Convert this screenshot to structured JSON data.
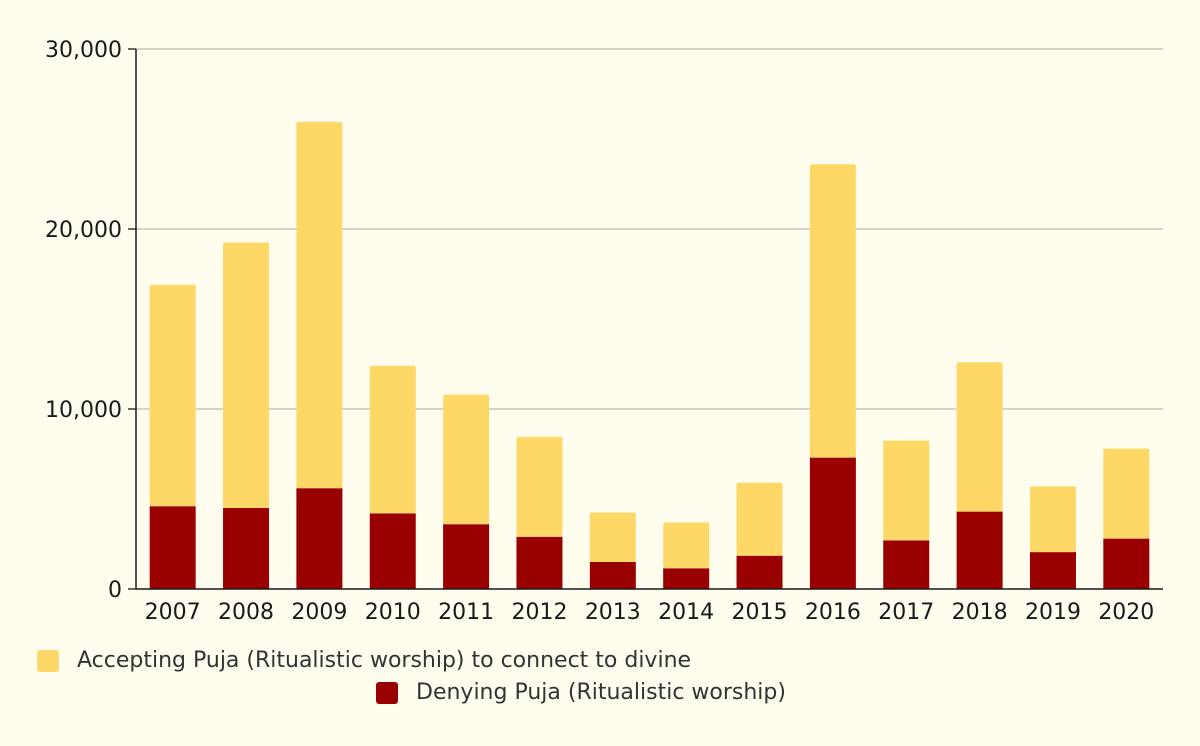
{
  "chart_data": {
    "type": "bar",
    "stacked": true,
    "categories": [
      "2007",
      "2008",
      "2009",
      "2010",
      "2011",
      "2012",
      "2013",
      "2014",
      "2015",
      "2016",
      "2017",
      "2018",
      "2019",
      "2020"
    ],
    "series": [
      {
        "name": "Denying Puja (Ritualistic worship)",
        "color": "#990000",
        "values": [
          4600,
          4500,
          5600,
          4200,
          3600,
          2900,
          1500,
          1150,
          1850,
          7300,
          2700,
          4300,
          2050,
          2800
        ]
      },
      {
        "name": "Accepting Puja (Ritualistic worship) to connect to divine",
        "color": "#fdd867",
        "values": [
          12300,
          14750,
          20350,
          8200,
          7200,
          5550,
          2750,
          2550,
          4050,
          16300,
          5550,
          8300,
          3650,
          5000
        ]
      }
    ],
    "ylim": [
      0,
      30000
    ],
    "yticks": [
      0,
      10000,
      20000,
      30000
    ],
    "ytick_labels": [
      "0",
      "10,000",
      "20,000",
      "30,000"
    ],
    "grid": true,
    "legend_position": "bottom"
  },
  "legend": {
    "accepting_label": "Accepting Puja (Ritualistic worship) to connect to divine",
    "denying_label": "Denying Puja (Ritualistic worship)"
  }
}
